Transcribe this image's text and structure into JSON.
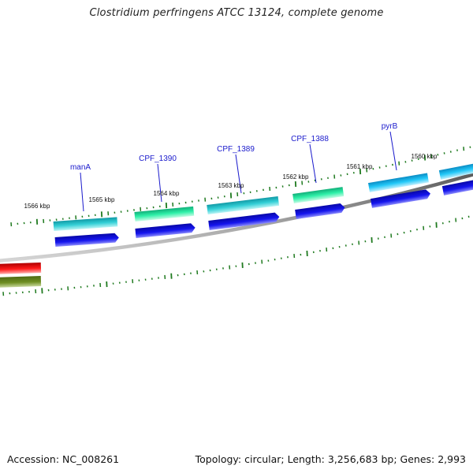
{
  "title": "Clostridium perfringens ATCC 13124, complete genome",
  "footer": {
    "accession": "Accession: NC_008261",
    "topology": "Topology: circular; Length: 3,256,683 bp; Genes: 2,993"
  },
  "tick_labels": [
    "1566 kbp",
    "1565 kbp",
    "1564 kbp",
    "1563 kbp",
    "1562 kbp",
    "1561 kbp",
    "1560 kbp"
  ],
  "gene_labels": [
    "manA",
    "CPF_1390",
    "CPF_1389",
    "CPF_1388",
    "pyrB"
  ],
  "colors": {
    "backbone": "#7a7a7a",
    "tick": "#1f7a1f",
    "gene_label": "#1a1acc",
    "cds": "#1010e0",
    "teal": "#22c0c8",
    "green": "#22e8a0",
    "sky": "#10c0f0",
    "red": "#ee1111",
    "olive": "#6a8a20"
  }
}
